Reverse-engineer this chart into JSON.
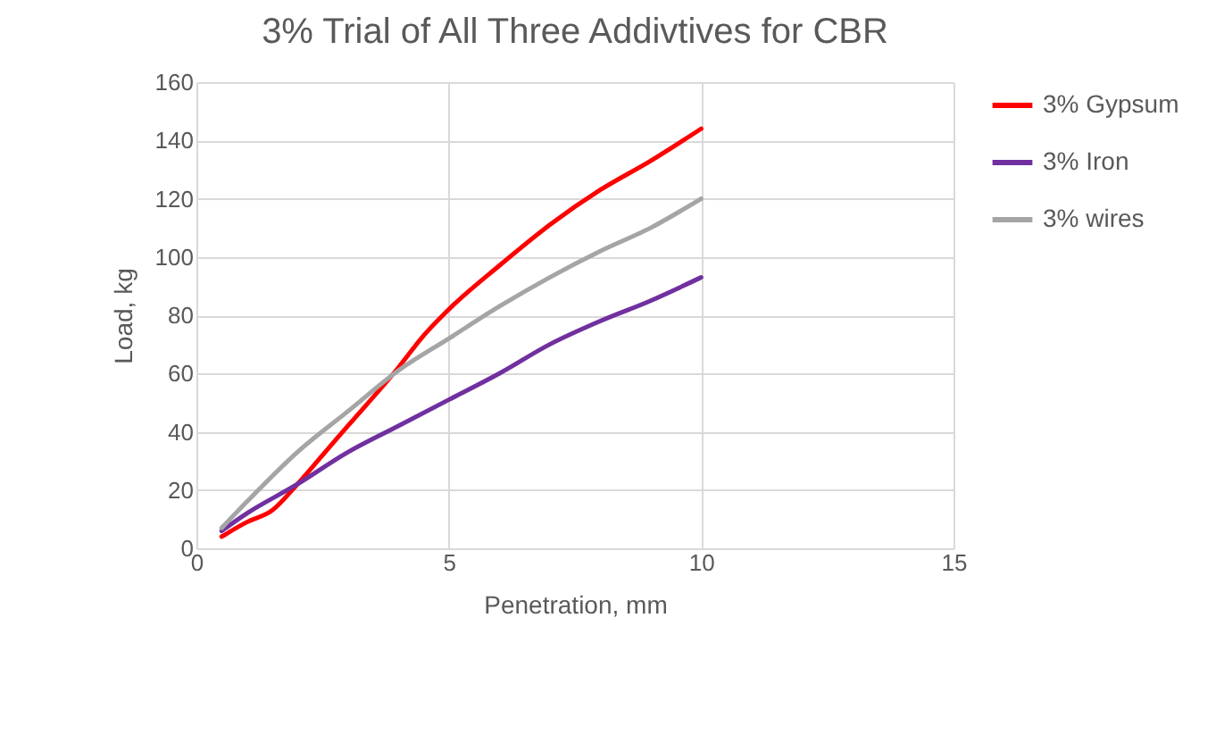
{
  "chart_data": {
    "type": "line",
    "title": "3% Trial of All Three Addivtives for CBR",
    "xlabel": "Penetration, mm",
    "ylabel": "Load, kg",
    "xlim": [
      0,
      15
    ],
    "xticks": [
      0,
      5,
      10,
      15
    ],
    "ylim": [
      0,
      160
    ],
    "yticks": [
      0,
      20,
      40,
      60,
      80,
      100,
      120,
      140,
      160
    ],
    "grid": true,
    "legend": "right",
    "marker": "none",
    "line_style": "solid",
    "series": [
      {
        "name": "3% Gypsum",
        "color": "#ff0000",
        "x": [
          0.5,
          1,
          1.5,
          2,
          2.5,
          3,
          4,
          4.5,
          5,
          6,
          7,
          8,
          9,
          10
        ],
        "values": [
          4,
          9,
          13,
          22,
          32,
          42,
          62,
          73,
          82,
          97,
          111,
          123,
          133,
          144
        ]
      },
      {
        "name": "3% Iron",
        "color": "#7030a0",
        "x": [
          0.5,
          1,
          2,
          3,
          4,
          5,
          6,
          7,
          8,
          9,
          10
        ],
        "values": [
          6,
          12,
          22,
          33,
          42,
          51,
          60,
          70,
          78,
          85,
          93
        ]
      },
      {
        "name": "3% wires",
        "color": "#a5a5a5",
        "x": [
          0.5,
          1,
          2,
          3,
          4,
          5,
          6,
          7,
          8,
          9,
          10
        ],
        "values": [
          7,
          16,
          33,
          47,
          61,
          72,
          83,
          93,
          102,
          110,
          120
        ]
      }
    ]
  }
}
